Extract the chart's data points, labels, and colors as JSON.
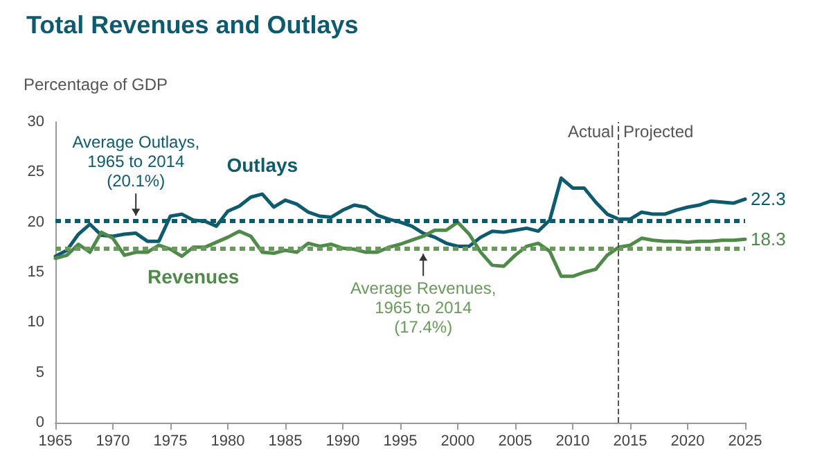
{
  "chart_data": {
    "type": "line",
    "title": "Total Revenues and Outlays",
    "ylabel": "Percentage of GDP",
    "x": [
      1965,
      1966,
      1967,
      1968,
      1969,
      1970,
      1971,
      1972,
      1973,
      1974,
      1975,
      1976,
      1977,
      1978,
      1979,
      1980,
      1981,
      1982,
      1983,
      1984,
      1985,
      1986,
      1987,
      1988,
      1989,
      1990,
      1991,
      1992,
      1993,
      1994,
      1995,
      1996,
      1997,
      1998,
      1999,
      2000,
      2001,
      2002,
      2003,
      2004,
      2005,
      2006,
      2007,
      2008,
      2009,
      2010,
      2011,
      2012,
      2013,
      2014,
      2015,
      2016,
      2017,
      2018,
      2019,
      2020,
      2021,
      2022,
      2023,
      2024,
      2025
    ],
    "series": [
      {
        "name": "Outlays",
        "color": "#0e5a6e",
        "values": [
          16.6,
          17.2,
          18.8,
          19.8,
          18.7,
          18.6,
          18.8,
          18.9,
          18.1,
          18.1,
          20.6,
          20.8,
          20.2,
          20.1,
          19.6,
          21.1,
          21.6,
          22.5,
          22.8,
          21.5,
          22.2,
          21.8,
          21.0,
          20.6,
          20.5,
          21.2,
          21.7,
          21.5,
          20.7,
          20.3,
          20.0,
          19.6,
          18.9,
          18.5,
          17.9,
          17.6,
          17.6,
          18.5,
          19.1,
          19.0,
          19.2,
          19.4,
          19.1,
          20.2,
          24.4,
          23.4,
          23.4,
          22.0,
          20.8,
          20.3,
          20.3,
          21.0,
          20.8,
          20.8,
          21.2,
          21.5,
          21.7,
          22.1,
          22.0,
          21.9,
          22.3
        ],
        "value_labels": [
          null,
          null,
          null,
          null,
          null,
          null,
          null,
          null,
          null,
          null,
          null,
          null,
          null,
          null,
          null,
          null,
          null,
          null,
          null,
          null,
          null,
          null,
          null,
          null,
          null,
          null,
          null,
          null,
          null,
          null,
          null,
          null,
          null,
          null,
          null,
          null,
          null,
          null,
          null,
          null,
          null,
          null,
          null,
          null,
          null,
          null,
          null,
          null,
          null,
          null,
          null,
          null,
          null,
          null,
          null,
          null,
          null,
          null,
          null,
          null,
          "22.3"
        ]
      },
      {
        "name": "Revenues",
        "color": "#4f8a4b",
        "values": [
          16.4,
          16.7,
          17.8,
          17.0,
          19.0,
          18.4,
          16.7,
          17.0,
          17.0,
          17.7,
          17.3,
          16.6,
          17.5,
          17.5,
          18.0,
          18.5,
          19.1,
          18.6,
          17.0,
          16.9,
          17.2,
          17.0,
          17.9,
          17.6,
          17.8,
          17.4,
          17.3,
          17.0,
          17.0,
          17.5,
          17.8,
          18.2,
          18.6,
          19.2,
          19.2,
          20.0,
          18.8,
          17.0,
          15.7,
          15.6,
          16.7,
          17.6,
          17.9,
          17.1,
          14.6,
          14.6,
          15.0,
          15.3,
          16.7,
          17.5,
          17.7,
          18.4,
          18.2,
          18.1,
          18.1,
          18.0,
          18.1,
          18.1,
          18.2,
          18.2,
          18.3
        ],
        "value_labels": [
          null,
          null,
          null,
          null,
          null,
          null,
          null,
          null,
          null,
          null,
          null,
          null,
          null,
          null,
          null,
          null,
          null,
          null,
          null,
          null,
          null,
          null,
          null,
          null,
          null,
          null,
          null,
          null,
          null,
          null,
          null,
          null,
          null,
          null,
          null,
          null,
          null,
          null,
          null,
          null,
          null,
          null,
          null,
          null,
          null,
          null,
          null,
          null,
          null,
          null,
          null,
          null,
          null,
          null,
          null,
          null,
          null,
          null,
          null,
          null,
          "18.3"
        ]
      }
    ],
    "xlim": [
      1965,
      2025
    ],
    "xticks": [
      1965,
      1970,
      1975,
      1980,
      1985,
      1990,
      1995,
      2000,
      2005,
      2010,
      2015,
      2020,
      2025
    ],
    "ylim": [
      0,
      30
    ],
    "yticks": [
      0,
      5,
      10,
      15,
      20,
      25,
      30
    ],
    "ref_lines": [
      {
        "axis": "y",
        "value": 20.1,
        "color": "#0e5a6e",
        "line_style": "dotted"
      },
      {
        "axis": "y",
        "value": 17.4,
        "color": "#6a9a5b",
        "line_style": "dotted"
      },
      {
        "axis": "x",
        "value": 2014,
        "color": "#555555",
        "line_style": "dashed"
      }
    ],
    "annotations": [
      {
        "text": "Average Outlays,\n1965 to 2014\n(20.1%)",
        "x": 1972,
        "y": 20.1
      },
      {
        "text": "Average Revenues,\n1965 to 2014\n(17.4%)",
        "x": 1997,
        "y": 17.4
      },
      {
        "text": "Actual",
        "x": 2013.6,
        "y": 29
      },
      {
        "text": "Projected",
        "x": 2014.4,
        "y": 29
      }
    ],
    "grid": false,
    "legend": false,
    "marker": "none",
    "line_style": "solid"
  }
}
